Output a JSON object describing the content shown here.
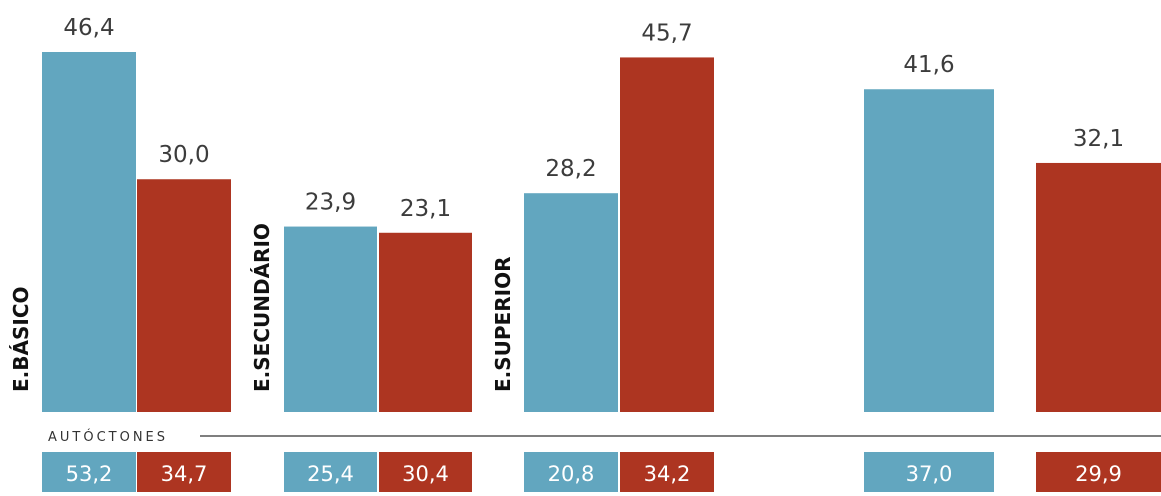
{
  "colors": {
    "blue": "#62a6bf",
    "red": "#ad3521",
    "line": "#555555"
  },
  "chart_data": {
    "type": "bar",
    "categories": [
      "E.BÁSICO",
      "E.SECUNDÁRIO",
      "E.SUPERIOR",
      ""
    ],
    "ylim": [
      0,
      50
    ],
    "series": [
      {
        "values": [
          46.4,
          23.9,
          28.2,
          41.6
        ],
        "labels": [
          "46,4",
          "23,9",
          "28,2",
          "41,6"
        ]
      },
      {
        "values": [
          30.0,
          23.1,
          45.7,
          32.1
        ],
        "labels": [
          "30,0",
          "23,1",
          "45,7",
          "32,1"
        ]
      }
    ],
    "secondary": {
      "label": "AUTÓCTONES",
      "series": [
        {
          "values": [
            53.2,
            25.4,
            20.8,
            37.0
          ],
          "labels": [
            "53,2",
            "25,4",
            "20,8",
            "37,0"
          ]
        },
        {
          "values": [
            34.7,
            30.4,
            34.2,
            29.9
          ],
          "labels": [
            "34,7",
            "30,4",
            "34,2",
            "29,9"
          ]
        }
      ]
    }
  }
}
